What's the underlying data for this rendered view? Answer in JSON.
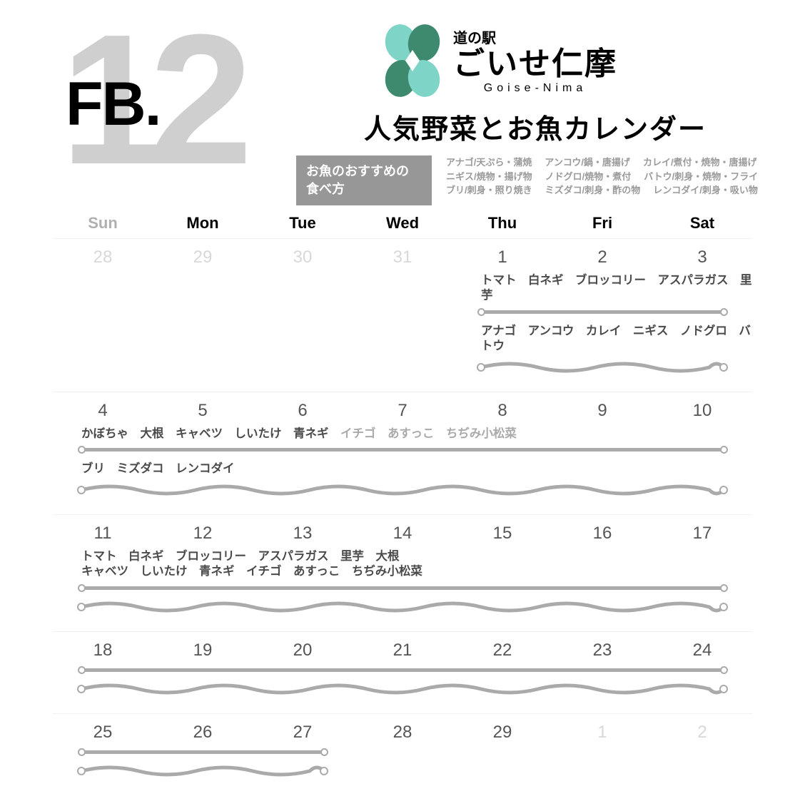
{
  "header": {
    "big_number": "12",
    "fb": "FB.",
    "michi": "道の駅",
    "goise_jp": "ごいせ仁摩",
    "goise_en": "Goise-Nima",
    "title": "人気野菜とお魚カレンダー",
    "rec_box_l1": "お魚のおすすめの",
    "rec_box_l2": "食べ方",
    "rec_r1a": "アナゴ/天ぷら・蒲焼",
    "rec_r1b": "アンコウ/鍋・唐揚げ",
    "rec_r1c": "カレイ/煮付・焼物・唐揚げ",
    "rec_r2a": "ニギス/焼物・揚げ物",
    "rec_r2b": "ノドグロ/焼物・煮付",
    "rec_r2c": "バトウ/刺身・焼物・フライ",
    "rec_r3a": "ブリ/刺身・照り焼き",
    "rec_r3b": "ミズダコ/刺身・酢の物",
    "rec_r3c": "レンコダイ/刺身・吸い物"
  },
  "weekdays": [
    "Sun",
    "Mon",
    "Tue",
    "Wed",
    "Thu",
    "Fri",
    "Sat"
  ],
  "colors": {
    "bar": "#aaaaaa",
    "faded_text": "#d8d8d8",
    "light_label": "#aaaaaa",
    "wave_stroke": "#aaaaaa"
  },
  "weeks": [
    {
      "days": [
        {
          "n": "28",
          "faded": true
        },
        {
          "n": "29",
          "faded": true
        },
        {
          "n": "30",
          "faded": true
        },
        {
          "n": "31",
          "faded": true
        },
        {
          "n": "1"
        },
        {
          "n": "2"
        },
        {
          "n": "3"
        }
      ],
      "veg_labels_a": "トマト　白ネギ　ブロッコリー　アスパラガス　里芋",
      "veg_labels_b": "",
      "veg_start": 4,
      "veg_end": 7,
      "fish_labels": "アナゴ　アンコウ　カレイ　ニギス　ノドグロ　バトウ",
      "fish_start": 4,
      "fish_end": 7
    },
    {
      "days": [
        {
          "n": "4"
        },
        {
          "n": "5"
        },
        {
          "n": "6"
        },
        {
          "n": "7"
        },
        {
          "n": "8"
        },
        {
          "n": "9"
        },
        {
          "n": "10"
        }
      ],
      "veg_labels_a": "かぼちゃ　大根　キャベツ　しいたけ　青ネギ",
      "veg_labels_b": "イチゴ　あすっこ　ちぢみ小松菜",
      "veg_start": 0,
      "veg_end": 7,
      "fish_labels": "ブリ　ミズダコ　レンコダイ",
      "fish_start": 0,
      "fish_end": 7
    },
    {
      "days": [
        {
          "n": "11"
        },
        {
          "n": "12"
        },
        {
          "n": "13"
        },
        {
          "n": "14"
        },
        {
          "n": "15"
        },
        {
          "n": "16"
        },
        {
          "n": "17"
        }
      ],
      "veg_labels_a": "トマト　白ネギ　ブロッコリー　アスパラガス　里芋　大根",
      "veg_labels_c": "キャベツ　しいたけ　青ネギ　イチゴ　あすっこ　ちぢみ小松菜",
      "veg_start": 0,
      "veg_end": 7,
      "fish_labels": "",
      "fish_start": 0,
      "fish_end": 7
    },
    {
      "days": [
        {
          "n": "18"
        },
        {
          "n": "19"
        },
        {
          "n": "20"
        },
        {
          "n": "21"
        },
        {
          "n": "22"
        },
        {
          "n": "23"
        },
        {
          "n": "24"
        }
      ],
      "veg_labels_a": "",
      "veg_start": 0,
      "veg_end": 7,
      "fish_labels": "",
      "fish_start": 0,
      "fish_end": 7
    },
    {
      "days": [
        {
          "n": "25"
        },
        {
          "n": "26"
        },
        {
          "n": "27"
        },
        {
          "n": "28"
        },
        {
          "n": "29"
        },
        {
          "n": "1",
          "faded": true
        },
        {
          "n": "2",
          "faded": true
        }
      ],
      "veg_labels_a": "",
      "veg_start": 0,
      "veg_end": 3,
      "fish_labels": "",
      "fish_start": 0,
      "fish_end": 3,
      "last": true
    }
  ]
}
